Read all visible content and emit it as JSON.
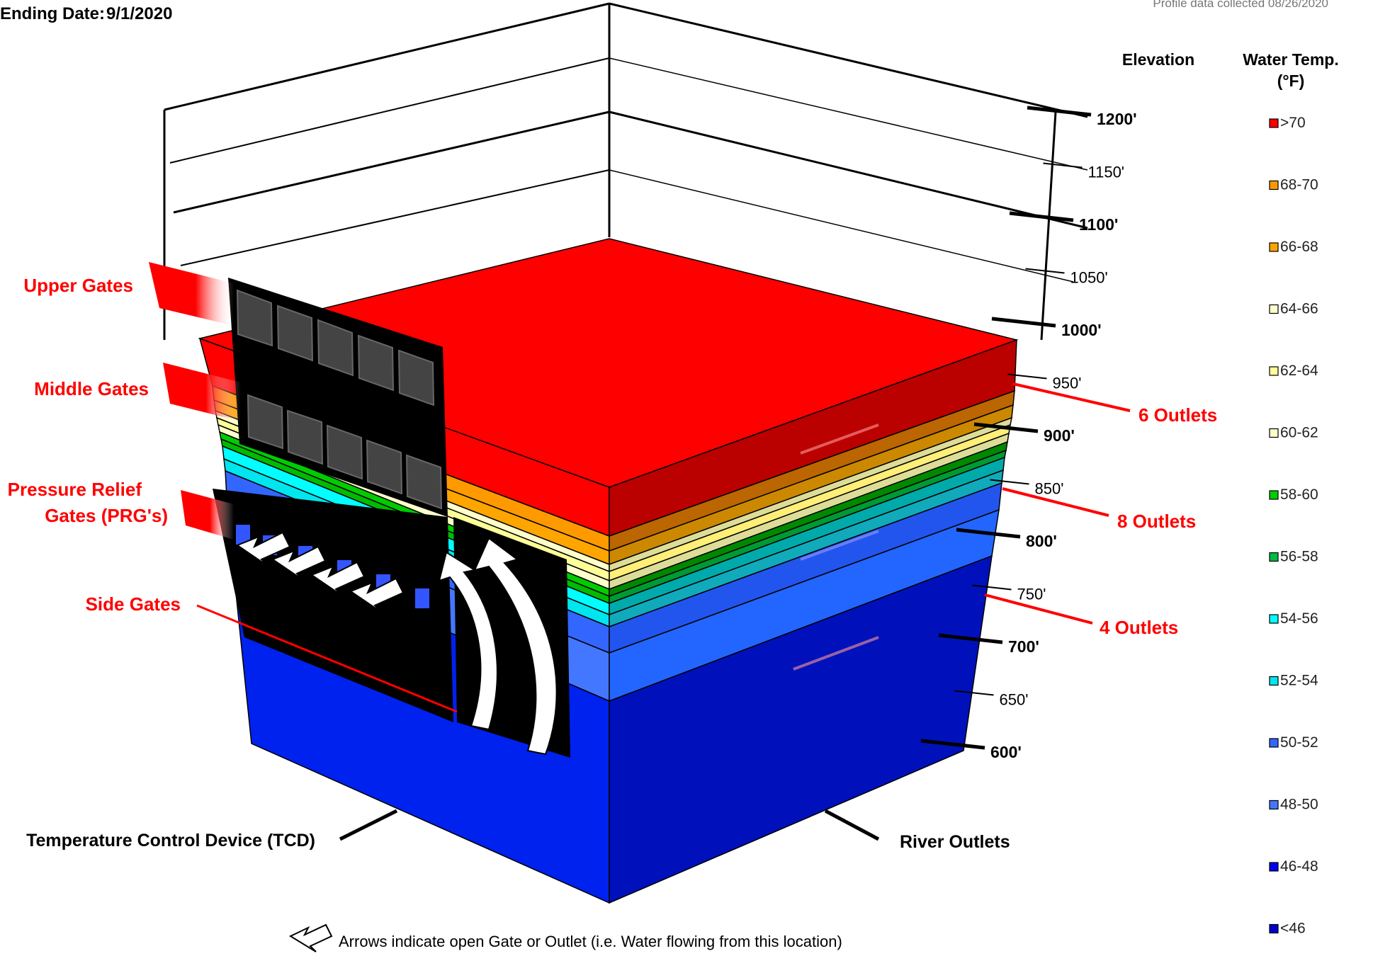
{
  "header": {
    "ending_date_label": "Ending Date:",
    "ending_date_value": "9/1/2020",
    "profile_note": "Profile data collected 08/26/2020"
  },
  "axis_headers": {
    "elevation": "Elevation",
    "water_temp_line1": "Water Temp.",
    "water_temp_line2": "(°F)"
  },
  "elevations": [
    {
      "label": "1200'",
      "bold": true
    },
    {
      "label": "1150'",
      "bold": false
    },
    {
      "label": "1100'",
      "bold": true
    },
    {
      "label": "1050'",
      "bold": false
    },
    {
      "label": "1000'",
      "bold": true
    },
    {
      "label": "950'",
      "bold": false
    },
    {
      "label": "900'",
      "bold": true
    },
    {
      "label": "850'",
      "bold": false
    },
    {
      "label": "800'",
      "bold": true
    },
    {
      "label": "750'",
      "bold": false
    },
    {
      "label": "700'",
      "bold": true
    },
    {
      "label": "650'",
      "bold": false
    },
    {
      "label": "600'",
      "bold": true
    }
  ],
  "legend": [
    {
      "label": ">70",
      "color": "#ff0000"
    },
    {
      "label": "68-70",
      "color": "#ff9900"
    },
    {
      "label": "66-68",
      "color": "#ffa500"
    },
    {
      "label": "64-66",
      "color": "#ffffcc"
    },
    {
      "label": "62-64",
      "color": "#ffff99"
    },
    {
      "label": "60-62",
      "color": "#ffffcc"
    },
    {
      "label": "58-60",
      "color": "#00cc00"
    },
    {
      "label": "56-58",
      "color": "#00bb44"
    },
    {
      "label": "54-56",
      "color": "#00ffff"
    },
    {
      "label": "52-54",
      "color": "#00e5ee"
    },
    {
      "label": "50-52",
      "color": "#3366ff"
    },
    {
      "label": "48-50",
      "color": "#4477ff"
    },
    {
      "label": "46-48",
      "color": "#0000ee"
    },
    {
      "label": "<46",
      "color": "#0000cc"
    }
  ],
  "gate_labels": {
    "upper": "Upper Gates",
    "middle": "Middle Gates",
    "prg_line1": "Pressure Relief",
    "prg_line2": "Gates  (PRG's)",
    "side": "Side Gates"
  },
  "outlet_labels": {
    "six": "6 Outlets",
    "eight": "8 Outlets",
    "four": "4 Outlets"
  },
  "faces": {
    "tcd": "Temperature Control Device (TCD)",
    "river": "River Outlets"
  },
  "footnote": "Arrows indicate open Gate or Outlet (i.e. Water flowing from this location)"
}
